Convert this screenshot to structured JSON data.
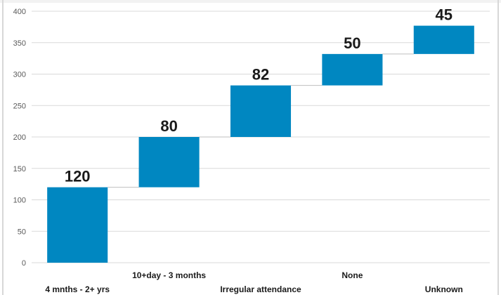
{
  "chart_data": {
    "type": "bar",
    "subtype": "waterfall",
    "categories": [
      "4 mnths - 2+ yrs",
      "10+day - 3 months",
      "Irregular attendance",
      "None",
      "Unknown"
    ],
    "values": [
      120,
      80,
      82,
      50,
      45
    ],
    "title": "",
    "xlabel": "",
    "ylabel": "",
    "ylim": [
      0,
      400
    ],
    "yticks": [
      0,
      50,
      100,
      150,
      200,
      250,
      300,
      350,
      400
    ],
    "grid": true,
    "legend": "none",
    "bar_color": "#0087c1"
  }
}
